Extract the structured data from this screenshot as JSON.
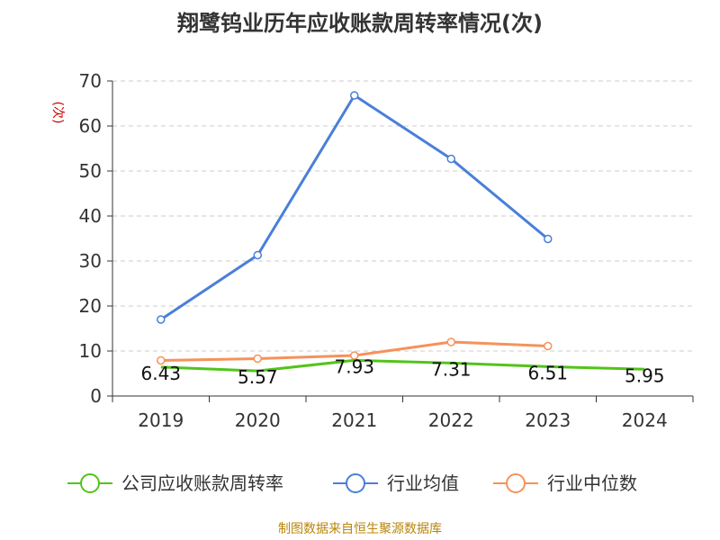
{
  "chart_data": {
    "type": "line",
    "title": "翔鹭钨业历年应收账款周转率情况(次)",
    "ylabel": "(次)",
    "xlabel": "",
    "categories": [
      "2019",
      "2020",
      "2021",
      "2022",
      "2023",
      "2024"
    ],
    "ylim": [
      0,
      70
    ],
    "yticks": [
      0,
      10,
      20,
      30,
      40,
      50,
      60,
      70
    ],
    "grid": true,
    "legend_position": "bottom",
    "series": [
      {
        "name": "公司应收账款周转率",
        "color": "#52c41a",
        "values": [
          6.43,
          5.57,
          7.93,
          7.31,
          6.51,
          5.95
        ],
        "data_labels": [
          "6.43",
          "5.57",
          "7.93",
          "7.31",
          "6.51",
          "5.95"
        ],
        "show_markers": false
      },
      {
        "name": "行业均值",
        "color": "#4a7fd9",
        "values": [
          17.0,
          31.3,
          66.8,
          52.7,
          34.9,
          null
        ],
        "show_markers": true
      },
      {
        "name": "行业中位数",
        "color": "#f5925a",
        "values": [
          7.9,
          8.3,
          9.0,
          12.0,
          11.1,
          null
        ],
        "show_markers": true
      }
    ]
  },
  "source_text": "制图数据来自恒生聚源数据库"
}
